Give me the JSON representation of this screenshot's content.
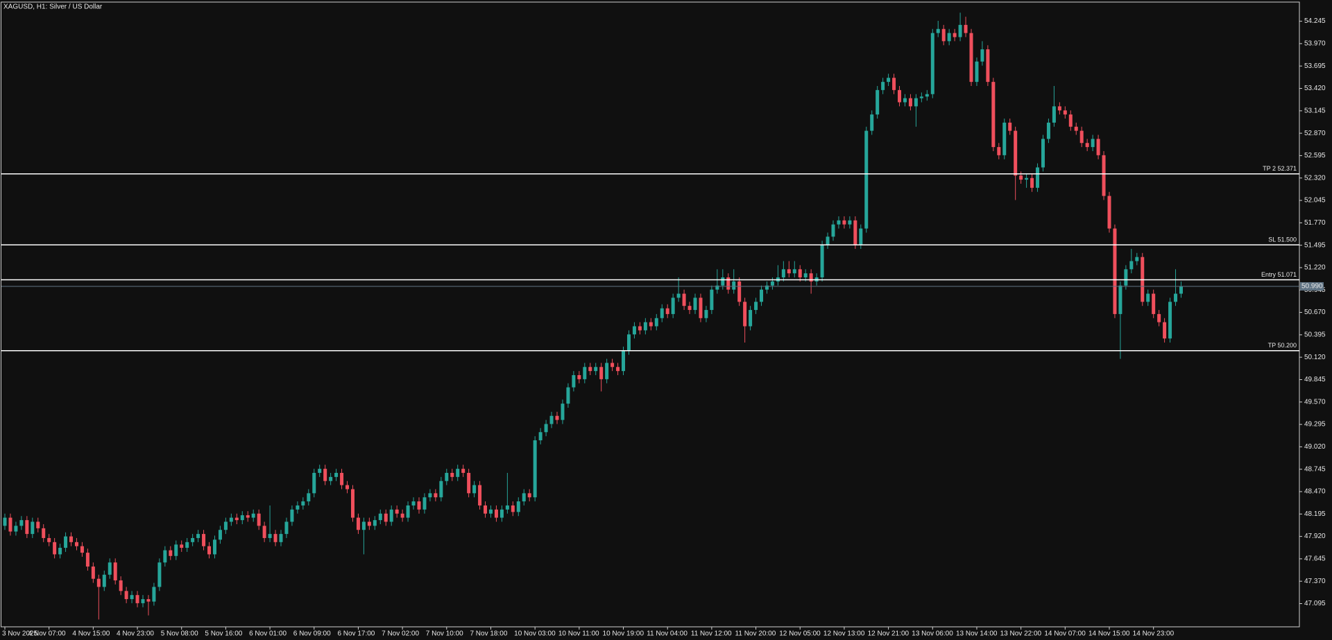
{
  "chart_data": {
    "type": "candlestick",
    "title": "XAGUSD, H1:  Silver / US Dollar",
    "up_color": "#26a69a",
    "down_color": "#ef4f5c",
    "categories": [
      "3 Nov 2025",
      null,
      null,
      null,
      null,
      null,
      null,
      null,
      "4 Nov 07:00",
      null,
      null,
      null,
      null,
      null,
      null,
      null,
      "4 Nov 15:00",
      null,
      null,
      null,
      null,
      null,
      null,
      null,
      "4 Nov 23:00",
      null,
      null,
      null,
      null,
      null,
      null,
      null,
      "5 Nov 08:00",
      null,
      null,
      null,
      null,
      null,
      null,
      null,
      "5 Nov 16:00",
      null,
      null,
      null,
      null,
      null,
      null,
      null,
      "6 Nov 01:00",
      null,
      null,
      null,
      null,
      null,
      null,
      null,
      "6 Nov 09:00",
      null,
      null,
      null,
      null,
      null,
      null,
      null,
      "6 Nov 17:00",
      null,
      null,
      null,
      null,
      null,
      null,
      null,
      "7 Nov 02:00",
      null,
      null,
      null,
      null,
      null,
      null,
      null,
      "7 Nov 10:00",
      null,
      null,
      null,
      null,
      null,
      null,
      null,
      "7 Nov 18:00",
      null,
      null,
      null,
      null,
      null,
      null,
      null,
      "10 Nov 03:00",
      null,
      null,
      null,
      null,
      null,
      null,
      null,
      "10 Nov 11:00",
      null,
      null,
      null,
      null,
      null,
      null,
      null,
      "10 Nov 19:00",
      null,
      null,
      null,
      null,
      null,
      null,
      null,
      "11 Nov 04:00",
      null,
      null,
      null,
      null,
      null,
      null,
      null,
      "11 Nov 12:00",
      null,
      null,
      null,
      null,
      null,
      null,
      null,
      "11 Nov 20:00",
      null,
      null,
      null,
      null,
      null,
      null,
      null,
      "12 Nov 05:00",
      null,
      null,
      null,
      null,
      null,
      null,
      null,
      "12 Nov 13:00",
      null,
      null,
      null,
      null,
      null,
      null,
      null,
      "12 Nov 21:00",
      null,
      null,
      null,
      null,
      null,
      null,
      null,
      "13 Nov 06:00",
      null,
      null,
      null,
      null,
      null,
      null,
      null,
      "13 Nov 14:00",
      null,
      null,
      null,
      null,
      null,
      null,
      null,
      "13 Nov 22:00",
      null,
      null,
      null,
      null,
      null,
      null,
      null,
      "14 Nov 07:00",
      null,
      null,
      null,
      null,
      null,
      null,
      null,
      "14 Nov 15:00",
      null,
      null,
      null,
      null,
      null,
      null,
      null,
      "14 Nov 23:00",
      null,
      null,
      null,
      null,
      null
    ],
    "open": [
      48.05,
      48.15,
      47.98,
      48.05,
      48.12,
      47.95,
      48.1,
      48.02,
      47.9,
      47.85,
      47.7,
      47.78,
      47.92,
      47.85,
      47.8,
      47.72,
      47.55,
      47.4,
      47.3,
      47.45,
      47.6,
      47.38,
      47.25,
      47.15,
      47.2,
      47.1,
      47.15,
      47.12,
      47.3,
      47.6,
      47.75,
      47.68,
      47.82,
      47.78,
      47.85,
      47.9,
      47.95,
      47.8,
      47.7,
      47.88,
      48.0,
      48.1,
      48.15,
      48.12,
      48.18,
      48.15,
      48.2,
      48.05,
      47.9,
      47.95,
      47.85,
      47.95,
      48.1,
      48.25,
      48.3,
      48.35,
      48.45,
      48.7,
      48.75,
      48.6,
      48.65,
      48.7,
      48.55,
      48.5,
      48.15,
      48.0,
      48.1,
      48.05,
      48.12,
      48.2,
      48.1,
      48.25,
      48.2,
      48.15,
      48.3,
      48.35,
      48.25,
      48.4,
      48.45,
      48.4,
      48.6,
      48.7,
      48.65,
      48.75,
      48.7,
      48.45,
      48.55,
      48.3,
      48.2,
      48.25,
      48.15,
      48.25,
      48.3,
      48.22,
      48.35,
      48.45,
      48.4,
      49.1,
      49.2,
      49.3,
      49.4,
      49.35,
      49.55,
      49.75,
      49.9,
      49.85,
      50.0,
      49.95,
      50.0,
      49.85,
      50.05,
      50.0,
      49.95,
      50.2,
      50.4,
      50.5,
      50.45,
      50.55,
      50.5,
      50.6,
      50.72,
      50.65,
      50.85,
      50.9,
      50.75,
      50.7,
      50.85,
      50.6,
      50.7,
      50.95,
      51.0,
      51.1,
      50.95,
      51.05,
      50.8,
      50.5,
      50.7,
      50.8,
      50.95,
      51.0,
      51.05,
      51.1,
      51.2,
      51.15,
      51.2,
      51.1,
      51.15,
      51.05,
      51.1,
      51.5,
      51.6,
      51.75,
      51.8,
      51.75,
      51.8,
      51.5,
      51.7,
      52.9,
      53.1,
      53.4,
      53.5,
      53.55,
      53.4,
      53.25,
      53.3,
      53.2,
      53.3,
      53.32,
      53.35,
      54.1,
      54.15,
      54.0,
      54.1,
      54.05,
      54.2,
      54.1,
      53.5,
      53.75,
      53.9,
      53.5,
      52.7,
      52.6,
      53.0,
      52.9,
      52.35,
      52.3,
      52.32,
      52.2,
      52.45,
      52.8,
      53.0,
      53.2,
      53.15,
      53.1,
      52.95,
      52.9,
      52.75,
      52.7,
      52.8,
      52.6,
      52.1,
      51.7,
      50.65,
      51.0,
      51.2,
      51.3,
      51.35,
      50.8,
      50.9,
      50.65,
      50.55,
      50.35,
      50.8,
      50.9
    ],
    "high": [
      48.2,
      48.2,
      48.1,
      48.17,
      48.17,
      48.15,
      48.15,
      48.07,
      47.95,
      47.9,
      47.83,
      47.97,
      47.97,
      47.9,
      47.85,
      47.77,
      47.6,
      47.45,
      47.5,
      47.65,
      47.65,
      47.43,
      47.3,
      47.25,
      47.25,
      47.2,
      47.2,
      47.35,
      47.65,
      47.8,
      47.8,
      47.87,
      47.87,
      47.9,
      47.95,
      48.0,
      48.0,
      47.85,
      47.93,
      48.05,
      48.15,
      48.2,
      48.2,
      48.23,
      48.23,
      48.25,
      48.25,
      48.1,
      48.3,
      48.0,
      48.0,
      48.15,
      48.3,
      48.35,
      48.4,
      48.5,
      48.75,
      48.8,
      48.8,
      48.7,
      48.75,
      48.75,
      48.6,
      48.55,
      48.2,
      48.15,
      48.15,
      48.17,
      48.25,
      48.25,
      48.3,
      48.3,
      48.25,
      48.35,
      48.4,
      48.4,
      48.45,
      48.5,
      48.5,
      48.65,
      48.75,
      48.75,
      48.8,
      48.8,
      48.75,
      48.6,
      48.6,
      48.35,
      48.3,
      48.3,
      48.3,
      48.7,
      48.35,
      48.4,
      48.5,
      48.5,
      49.15,
      49.25,
      49.35,
      49.45,
      49.45,
      49.6,
      49.8,
      49.95,
      49.95,
      50.05,
      50.05,
      50.05,
      50.05,
      50.1,
      50.1,
      50.05,
      50.25,
      50.45,
      50.55,
      50.55,
      50.6,
      50.6,
      50.65,
      50.77,
      50.77,
      50.9,
      51.1,
      50.95,
      50.8,
      50.9,
      50.9,
      50.75,
      51.0,
      51.2,
      51.2,
      51.15,
      51.2,
      51.1,
      50.85,
      50.75,
      50.85,
      51.0,
      51.05,
      51.1,
      51.25,
      51.3,
      51.3,
      51.3,
      51.25,
      51.2,
      51.2,
      51.15,
      51.55,
      51.65,
      51.8,
      51.85,
      51.85,
      51.85,
      51.85,
      51.75,
      52.95,
      53.15,
      53.45,
      53.55,
      53.6,
      53.6,
      53.45,
      53.35,
      53.35,
      53.35,
      53.37,
      53.4,
      54.15,
      54.25,
      54.2,
      54.15,
      54.15,
      54.35,
      54.3,
      54.15,
      53.8,
      54.0,
      53.95,
      53.55,
      52.75,
      53.05,
      53.05,
      52.95,
      52.4,
      52.37,
      52.37,
      52.5,
      52.85,
      53.05,
      53.45,
      53.25,
      53.2,
      53.15,
      53.0,
      52.95,
      52.8,
      52.85,
      52.85,
      52.65,
      52.15,
      51.75,
      51.05,
      51.25,
      51.45,
      51.4,
      51.4,
      50.95,
      50.95,
      50.7,
      50.6,
      50.85,
      51.2,
      51.05
    ],
    "low": [
      48.0,
      47.93,
      47.93,
      48.0,
      47.9,
      47.9,
      47.97,
      47.85,
      47.8,
      47.65,
      47.65,
      47.73,
      47.8,
      47.75,
      47.67,
      47.5,
      47.35,
      46.9,
      47.25,
      47.4,
      47.33,
      47.2,
      47.1,
      47.1,
      47.05,
      47.05,
      46.95,
      47.07,
      47.25,
      47.55,
      47.63,
      47.63,
      47.73,
      47.73,
      47.8,
      47.85,
      47.75,
      47.65,
      47.65,
      47.83,
      47.95,
      48.05,
      48.07,
      48.07,
      48.1,
      48.1,
      48.0,
      47.85,
      47.85,
      47.8,
      47.8,
      47.9,
      48.05,
      48.2,
      48.25,
      48.3,
      48.4,
      48.65,
      48.55,
      48.55,
      48.6,
      48.5,
      48.45,
      48.1,
      47.95,
      47.7,
      48.0,
      48.0,
      48.07,
      48.05,
      48.05,
      48.15,
      48.1,
      48.1,
      48.25,
      48.2,
      48.2,
      48.35,
      48.35,
      48.35,
      48.55,
      48.6,
      48.6,
      48.65,
      48.4,
      48.4,
      48.25,
      48.15,
      48.15,
      48.1,
      48.1,
      48.2,
      48.17,
      48.17,
      48.3,
      48.35,
      48.35,
      49.05,
      49.15,
      49.25,
      49.3,
      49.3,
      49.5,
      49.7,
      49.8,
      49.8,
      49.9,
      49.9,
      49.7,
      49.8,
      49.95,
      49.9,
      49.9,
      50.15,
      50.35,
      50.4,
      50.4,
      50.45,
      50.45,
      50.55,
      50.6,
      50.6,
      50.8,
      50.7,
      50.65,
      50.65,
      50.55,
      50.55,
      50.65,
      50.9,
      50.95,
      50.9,
      50.9,
      50.75,
      50.3,
      50.45,
      50.65,
      50.75,
      50.9,
      50.95,
      51.0,
      51.05,
      51.1,
      51.1,
      51.05,
      51.05,
      50.9,
      51.0,
      51.05,
      51.45,
      51.55,
      51.7,
      51.7,
      51.7,
      51.45,
      51.45,
      51.65,
      52.85,
      53.05,
      53.35,
      53.45,
      53.35,
      53.2,
      53.2,
      53.15,
      52.95,
      53.25,
      53.27,
      53.3,
      54.05,
      53.95,
      53.95,
      54.0,
      54.0,
      54.05,
      53.45,
      53.45,
      53.7,
      53.45,
      52.65,
      52.55,
      52.55,
      52.85,
      52.05,
      52.25,
      52.2,
      52.15,
      52.15,
      52.4,
      52.75,
      52.95,
      53.1,
      53.05,
      52.9,
      52.85,
      52.7,
      52.65,
      52.65,
      52.55,
      52.05,
      51.65,
      50.6,
      50.1,
      50.95,
      51.15,
      51.25,
      50.75,
      50.75,
      50.6,
      50.5,
      50.3,
      50.3,
      50.75,
      50.85
    ],
    "close": [
      48.15,
      47.98,
      48.05,
      48.12,
      47.95,
      48.1,
      48.02,
      47.9,
      47.85,
      47.7,
      47.78,
      47.92,
      47.85,
      47.8,
      47.72,
      47.55,
      47.4,
      47.3,
      47.45,
      47.6,
      47.38,
      47.25,
      47.15,
      47.2,
      47.1,
      47.15,
      47.12,
      47.3,
      47.6,
      47.75,
      47.68,
      47.82,
      47.78,
      47.85,
      47.9,
      47.95,
      47.8,
      47.7,
      47.88,
      48.0,
      48.1,
      48.15,
      48.12,
      48.18,
      48.15,
      48.2,
      48.05,
      47.9,
      47.95,
      47.85,
      47.95,
      48.1,
      48.25,
      48.3,
      48.35,
      48.45,
      48.7,
      48.75,
      48.6,
      48.65,
      48.7,
      48.55,
      48.5,
      48.15,
      48.0,
      48.1,
      48.05,
      48.12,
      48.2,
      48.1,
      48.25,
      48.2,
      48.15,
      48.3,
      48.35,
      48.25,
      48.4,
      48.45,
      48.4,
      48.6,
      48.7,
      48.65,
      48.75,
      48.7,
      48.45,
      48.55,
      48.3,
      48.2,
      48.25,
      48.15,
      48.25,
      48.3,
      48.22,
      48.35,
      48.45,
      48.4,
      49.1,
      49.2,
      49.3,
      49.4,
      49.35,
      49.55,
      49.75,
      49.9,
      49.85,
      50.0,
      49.95,
      50.0,
      49.85,
      50.05,
      50.0,
      49.95,
      50.2,
      50.4,
      50.5,
      50.45,
      50.55,
      50.5,
      50.6,
      50.72,
      50.65,
      50.85,
      50.9,
      50.75,
      50.7,
      50.85,
      50.6,
      50.7,
      50.95,
      51.0,
      51.1,
      50.95,
      51.05,
      50.8,
      50.5,
      50.7,
      50.8,
      50.95,
      51.0,
      51.05,
      51.1,
      51.2,
      51.15,
      51.2,
      51.1,
      51.15,
      51.05,
      51.1,
      51.5,
      51.6,
      51.75,
      51.8,
      51.75,
      51.8,
      51.5,
      51.7,
      52.9,
      53.1,
      53.4,
      53.5,
      53.55,
      53.4,
      53.25,
      53.3,
      53.2,
      53.3,
      53.32,
      53.35,
      54.1,
      54.15,
      54.0,
      54.1,
      54.05,
      54.2,
      54.1,
      53.5,
      53.75,
      53.9,
      53.5,
      52.7,
      52.6,
      53.0,
      52.9,
      52.35,
      52.3,
      52.32,
      52.2,
      52.45,
      52.8,
      53.0,
      53.2,
      53.15,
      53.1,
      52.95,
      52.9,
      52.75,
      52.7,
      52.8,
      52.6,
      52.1,
      51.7,
      50.65,
      51.0,
      51.2,
      51.3,
      51.35,
      50.8,
      50.9,
      50.65,
      50.55,
      50.35,
      50.8,
      50.9,
      50.99
    ],
    "ylim": [
      46.81,
      54.48
    ],
    "yticks": [
      47.095,
      {
        "value": 47.37,
        "label": "47.370"
      },
      47.645,
      {
        "value": 47.92,
        "label": "47.920"
      },
      48.195,
      {
        "value": 48.47,
        "label": "48.470"
      },
      48.745,
      {
        "value": 49.02,
        "label": "49.020"
      },
      49.295,
      {
        "value": 49.57,
        "label": "49.570"
      },
      49.845,
      {
        "value": 50.12,
        "label": "50.120"
      },
      50.395,
      {
        "value": 50.67,
        "label": "50.670"
      },
      50.945,
      {
        "value": 51.22,
        "label": "51.220"
      },
      51.495,
      {
        "value": 51.77,
        "label": "51.770"
      },
      52.045,
      {
        "value": 52.32,
        "label": "52.320"
      },
      52.595,
      {
        "value": 52.87,
        "label": "52.870"
      },
      53.145,
      {
        "value": 53.42,
        "label": "53.420"
      },
      53.695,
      {
        "value": 53.97,
        "label": "53.970"
      },
      54.245
    ],
    "levels": [
      {
        "value": 52.371,
        "label": "TP 2 52.371"
      },
      {
        "value": 51.5,
        "label": "SL 51.500"
      },
      {
        "value": 51.071,
        "label": "Entry 51.071"
      },
      {
        "value": 50.2,
        "label": "TP 50.200"
      }
    ],
    "last_price": {
      "value": 50.99,
      "label": "50.990"
    }
  }
}
